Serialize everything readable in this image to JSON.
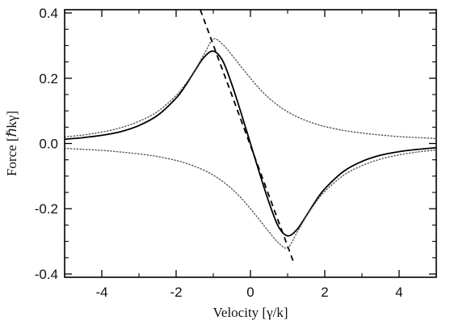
{
  "chart_data": {
    "type": "line",
    "title": "",
    "xlabel": "Velocity [γ/k]",
    "ylabel": "Force [ℏkγ]",
    "xlim": [
      -5,
      5
    ],
    "ylim": [
      -0.41,
      0.41
    ],
    "xticks": [
      -4,
      -2,
      0,
      2,
      4
    ],
    "xtick_labels": [
      "-4",
      "-2",
      "0",
      "2",
      "4"
    ],
    "yticks": [
      -0.4,
      -0.2,
      0.0,
      0.2,
      0.4
    ],
    "ytick_labels": [
      "-0.4",
      "-0.2",
      "0.0",
      "0.2",
      "0.4"
    ],
    "grid": false,
    "legend": "none",
    "x": [
      -5,
      -4.5,
      -4,
      -3.5,
      -3,
      -2.5,
      -2,
      -1.75,
      -1.5,
      -1.25,
      -1,
      -0.75,
      -0.5,
      -0.25,
      0,
      0.25,
      0.5,
      0.75,
      1,
      1.25,
      1.5,
      1.75,
      2,
      2.5,
      3,
      3.5,
      4,
      4.5,
      5
    ],
    "series": [
      {
        "style": "solid",
        "color": "#000000",
        "values": [
          0.013,
          0.018,
          0.025,
          0.036,
          0.055,
          0.086,
          0.139,
          0.177,
          0.222,
          0.264,
          0.283,
          0.254,
          0.181,
          0.093,
          0.0,
          -0.093,
          -0.181,
          -0.254,
          -0.283,
          -0.264,
          -0.222,
          -0.177,
          -0.139,
          -0.086,
          -0.055,
          -0.036,
          -0.025,
          -0.018,
          -0.013
        ]
      },
      {
        "style": "dotted",
        "color": "#555555",
        "values": [
          0.02,
          0.026,
          0.035,
          0.048,
          0.068,
          0.098,
          0.147,
          0.182,
          0.224,
          0.273,
          0.32,
          0.304,
          0.271,
          0.235,
          0.2,
          0.167,
          0.139,
          0.116,
          0.097,
          0.082,
          0.07,
          0.06,
          0.052,
          0.04,
          0.032,
          0.026,
          0.021,
          0.018,
          0.015
        ]
      },
      {
        "style": "dotted",
        "color": "#555555",
        "values": [
          -0.015,
          -0.018,
          -0.021,
          -0.026,
          -0.032,
          -0.04,
          -0.052,
          -0.06,
          -0.07,
          -0.082,
          -0.097,
          -0.116,
          -0.139,
          -0.167,
          -0.2,
          -0.235,
          -0.271,
          -0.304,
          -0.32,
          -0.273,
          -0.224,
          -0.182,
          -0.147,
          -0.098,
          -0.068,
          -0.048,
          -0.035,
          -0.026,
          -0.02
        ]
      },
      {
        "style": "dashed",
        "color": "#000000",
        "x": [
          -1.35,
          1.18
        ],
        "values": [
          0.41,
          -0.37
        ]
      }
    ]
  }
}
